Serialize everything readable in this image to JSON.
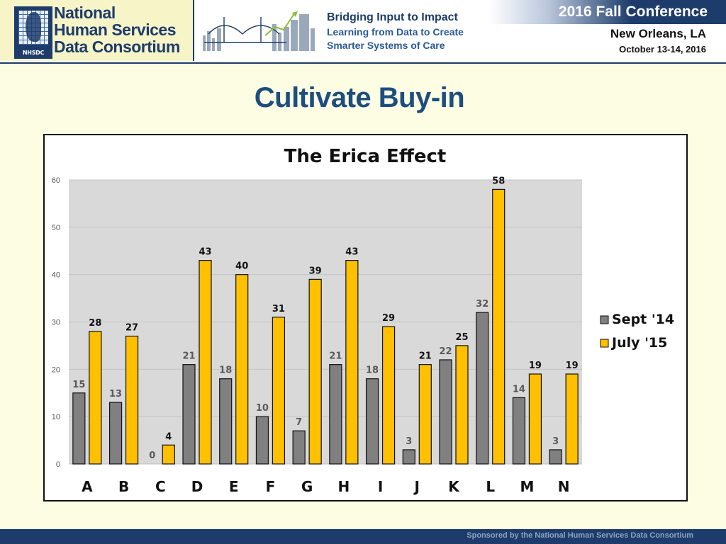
{
  "header": {
    "org_name_lines": [
      "National",
      "Human Services",
      "Data Consortium"
    ],
    "org_acronym": "NHSDC",
    "tagline_title": "Bridging Input to Impact",
    "tagline_line1": "Learning from Data to Create",
    "tagline_line2": "Smarter Systems of Care",
    "conference": "2016 Fall Conference",
    "city": "New Orleans, LA",
    "dates": "October 13-14, 2016",
    "brand_color": "#1d3c6b"
  },
  "slide": {
    "title": "Cultivate Buy-in"
  },
  "footer": {
    "text": "Sponsored by the National Human Services Data Consortium"
  },
  "chart_data": {
    "type": "bar",
    "title": "The Erica Effect",
    "xlabel": "",
    "ylabel": "",
    "ylim": [
      0,
      60
    ],
    "yticks": [
      0,
      10,
      20,
      30,
      40,
      50,
      60
    ],
    "grid": true,
    "legend_position": "right",
    "categories": [
      "A",
      "B",
      "C",
      "D",
      "E",
      "F",
      "G",
      "H",
      "I",
      "J",
      "K",
      "L",
      "M",
      "N"
    ],
    "series": [
      {
        "name": "Sept '14",
        "color": "#808080",
        "values": [
          15,
          13,
          0,
          21,
          18,
          10,
          7,
          21,
          18,
          3,
          22,
          32,
          14,
          3
        ],
        "labels": [
          "15",
          "13",
          "0",
          "21",
          "18",
          "10",
          "7",
          "21",
          "18",
          "3",
          "22",
          "32",
          "14",
          "3"
        ]
      },
      {
        "name": "July '15",
        "color": "#ffc000",
        "values": [
          28,
          27,
          4,
          43,
          40,
          31,
          39,
          43,
          29,
          21,
          25,
          58,
          19,
          19
        ],
        "labels": [
          "28",
          "27",
          "4",
          "43",
          "40",
          "31",
          "39",
          "43",
          "29",
          "21",
          "25",
          "58",
          "19",
          "19"
        ]
      }
    ]
  }
}
